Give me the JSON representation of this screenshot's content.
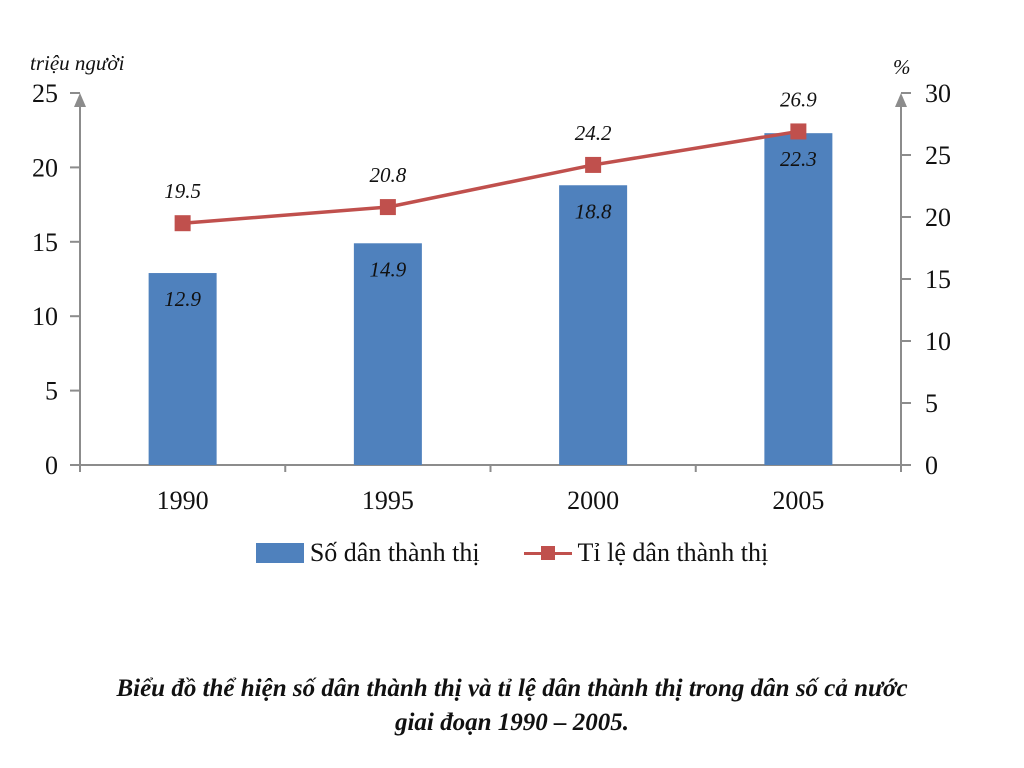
{
  "chart_data": {
    "type": "bar",
    "categories": [
      "1990",
      "1995",
      "2000",
      "2005"
    ],
    "series": [
      {
        "name": "Số dân thành thị",
        "type": "bar",
        "axis": "left",
        "values": [
          12.9,
          14.9,
          18.8,
          22.3
        ],
        "color": "#4F81BD"
      },
      {
        "name": "Tỉ lệ dân thành thị",
        "type": "line",
        "axis": "right",
        "values": [
          19.5,
          20.8,
          24.2,
          26.9
        ],
        "color": "#C0504D"
      }
    ],
    "left_axis": {
      "unit": "triệu người",
      "ylim": [
        0,
        25
      ],
      "ticks": [
        "0",
        "5",
        "10",
        "15",
        "20",
        "25"
      ]
    },
    "right_axis": {
      "unit": "%",
      "ylim": [
        0,
        30
      ],
      "ticks": [
        "0",
        "5",
        "10",
        "15",
        "20",
        "25",
        "30"
      ]
    },
    "bar_labels": [
      "12.9",
      "14.9",
      "18.8",
      "22.3"
    ],
    "line_labels": [
      "19.5",
      "20.8",
      "24.2",
      "26.9"
    ],
    "legend": [
      "Số dân thành thị",
      "Tỉ lệ dân thành thị"
    ],
    "legend_position": "bottom",
    "grid": false,
    "caption": [
      "Biểu đồ thể hiện số dân thành thị và tỉ lệ dân thành thị trong dân số cả nước",
      "giai đoạn 1990 – 2005."
    ]
  }
}
